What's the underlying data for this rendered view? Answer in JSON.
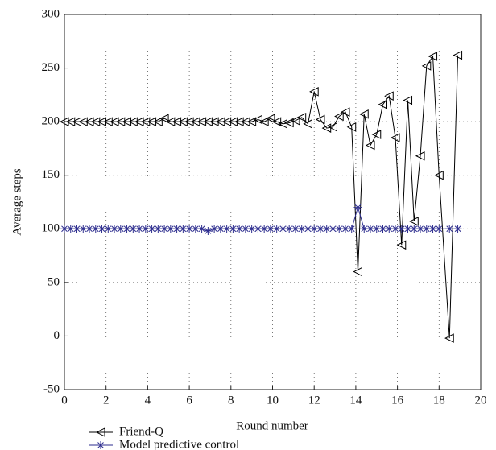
{
  "chart_data": {
    "type": "line",
    "xlabel": "Round number",
    "ylabel": "Average steps",
    "x": [
      0,
      0.3,
      0.6,
      0.9,
      1.2,
      1.5,
      1.8,
      2.1,
      2.4,
      2.7,
      3,
      3.3,
      3.6,
      3.9,
      4.2,
      4.5,
      4.8,
      5.1,
      5.4,
      5.7,
      6,
      6.3,
      6.6,
      6.9,
      7.2,
      7.5,
      7.8,
      8.1,
      8.4,
      8.7,
      9,
      9.3,
      9.6,
      9.9,
      10.2,
      10.5,
      10.8,
      11.1,
      11.4,
      11.7,
      12,
      12.3,
      12.6,
      12.9,
      13.2,
      13.5,
      13.8,
      14.1,
      14.4,
      14.7,
      15,
      15.3,
      15.6,
      15.9,
      16.2,
      16.5,
      16.8,
      17.1,
      17.4,
      17.7,
      18,
      18.5,
      18.9
    ],
    "series": [
      {
        "name": "Friend-Q",
        "color": "#000000",
        "marker": "triangle-left",
        "values": [
          200,
          200,
          200,
          200,
          200,
          200,
          200,
          200,
          200,
          200,
          200,
          200,
          200,
          200,
          200,
          200,
          203,
          200,
          200,
          200,
          200,
          200,
          200,
          200,
          200,
          200,
          200,
          200,
          200,
          200,
          200,
          202,
          200,
          203,
          200,
          198,
          199,
          201,
          204,
          198,
          228,
          202,
          194,
          195,
          205,
          209,
          195,
          60,
          207,
          178,
          188,
          216,
          224,
          185,
          85,
          220,
          107,
          168,
          252,
          261,
          150,
          -2,
          262
        ]
      },
      {
        "name": "Model predictive control",
        "color": "#2e2e8f",
        "marker": "asterisk",
        "values": [
          100,
          100,
          100,
          100,
          100,
          100,
          100,
          100,
          100,
          100,
          100,
          100,
          100,
          100,
          100,
          100,
          100,
          100,
          100,
          100,
          100,
          100,
          100,
          98,
          100,
          100,
          100,
          100,
          100,
          100,
          100,
          100,
          100,
          100,
          100,
          100,
          100,
          100,
          100,
          100,
          100,
          100,
          100,
          100,
          100,
          100,
          100,
          120,
          100,
          100,
          100,
          100,
          100,
          100,
          100,
          100,
          100,
          100,
          100,
          100,
          100,
          100,
          100
        ]
      }
    ],
    "xlim": [
      0,
      20
    ],
    "xticks": [
      0,
      2,
      4,
      6,
      8,
      10,
      12,
      14,
      16,
      18,
      20
    ],
    "ylim": [
      -50,
      300
    ],
    "yticks": [
      -50,
      0,
      50,
      100,
      150,
      200,
      250,
      300
    ],
    "grid": true,
    "legend": "bottom"
  }
}
